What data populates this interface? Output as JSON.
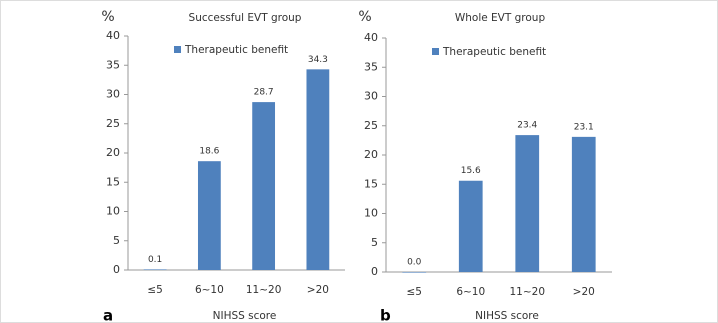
{
  "chart_data": [
    {
      "type": "bar",
      "panel_label": "a",
      "title": "Successful EVT group",
      "ylabel": "%",
      "xlabel": "NIHSS score",
      "categories": [
        "≤5",
        "6~10",
        "11~20",
        ">20"
      ],
      "series": [
        {
          "name": "Therapeutic benefit",
          "color": "#4f81bd",
          "values": [
            0.1,
            18.6,
            28.7,
            34.3
          ]
        }
      ],
      "ylim": [
        0,
        40
      ],
      "yticks": [
        0,
        5,
        10,
        15,
        20,
        25,
        30,
        35,
        40
      ],
      "grid": false
    },
    {
      "type": "bar",
      "panel_label": "b",
      "title": "Whole EVT group",
      "ylabel": "%",
      "xlabel": "NIHSS score",
      "categories": [
        "≤5",
        "6~10",
        "11~20",
        ">20"
      ],
      "series": [
        {
          "name": "Therapeutic benefit",
          "color": "#4f81bd",
          "values": [
            0,
            15.6,
            23.4,
            23.1
          ],
          "value_labels": [
            "0.0",
            "15.6",
            "23.4",
            "23.1"
          ]
        }
      ],
      "ylim": [
        0,
        40
      ],
      "yticks": [
        0,
        5,
        10,
        15,
        20,
        25,
        30,
        35,
        40
      ],
      "grid": false
    }
  ]
}
